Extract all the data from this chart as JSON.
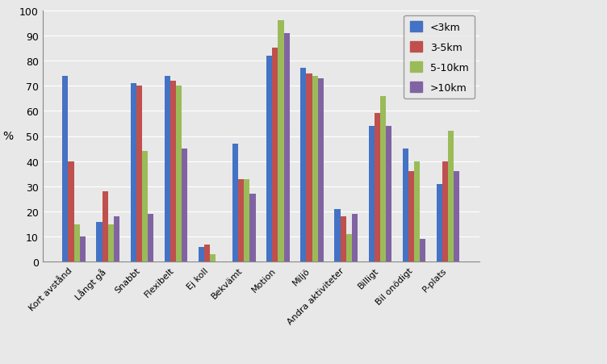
{
  "categories": [
    "Kort avstånd",
    "Långt gå",
    "Snabbt",
    "Flexibelt",
    "Ej koll",
    "Bekvämt",
    "Motion",
    "Miljö",
    "Andra aktiviteter",
    "Billigt",
    "Bil onödigt",
    "P-plats"
  ],
  "series": {
    "<3km": [
      74,
      16,
      71,
      74,
      6,
      47,
      82,
      77,
      21,
      54,
      45,
      31
    ],
    "3-5km": [
      40,
      28,
      70,
      72,
      7,
      33,
      85,
      75,
      18,
      59,
      36,
      40
    ],
    "5-10km": [
      15,
      15,
      44,
      70,
      3,
      33,
      96,
      74,
      11,
      66,
      40,
      52
    ],
    ">10km": [
      10,
      18,
      19,
      45,
      0,
      27,
      91,
      73,
      19,
      54,
      9,
      36
    ]
  },
  "colors": {
    "<3km": "#4472C4",
    "3-5km": "#C0504D",
    "5-10km": "#9BBB59",
    ">10km": "#8064A2"
  },
  "ylabel": "%",
  "ylim": [
    0,
    100
  ],
  "yticks": [
    0,
    10,
    20,
    30,
    40,
    50,
    60,
    70,
    80,
    90,
    100
  ],
  "legend_order": [
    "<3km",
    "3-5km",
    "5-10km",
    ">10km"
  ],
  "bar_width": 0.17,
  "figsize": [
    7.52,
    4.52
  ],
  "dpi": 100,
  "fig_bg": "#E8E8E8",
  "plot_bg": "#E8E8E8",
  "grid_color": "#FFFFFF",
  "xtick_fontsize": 8.0,
  "ytick_fontsize": 9.0,
  "ylabel_fontsize": 10.0,
  "legend_fontsize": 9.0
}
